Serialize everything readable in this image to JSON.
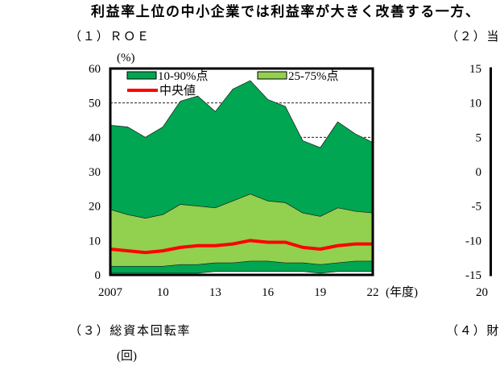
{
  "header": {
    "title": "利益率上位の中小企業では利益率が大きく改善する一方、"
  },
  "chart_data": [
    {
      "title": "（１）ＲＯＥ",
      "type": "area",
      "ylabel": "(%)",
      "xlabel": "(年度)",
      "x": [
        2007,
        2008,
        2009,
        2010,
        2011,
        2012,
        2013,
        2014,
        2015,
        2016,
        2017,
        2018,
        2019,
        2020,
        2021,
        2022
      ],
      "xticks": [
        2007,
        2010,
        2013,
        2016,
        2019,
        2022
      ],
      "xtick_labels": [
        "2007",
        "10",
        "13",
        "16",
        "19",
        "22"
      ],
      "ylim": [
        0,
        60
      ],
      "yticks": [
        0,
        10,
        20,
        30,
        40,
        50,
        60
      ],
      "grid": true,
      "legend": "top",
      "series": [
        {
          "name": "10-90%点",
          "color": "#00a651",
          "lower": [
            0.5,
            0.5,
            0.5,
            0.5,
            0.5,
            0.5,
            1,
            1,
            1,
            1,
            1,
            1,
            0.5,
            1,
            1,
            1
          ],
          "upper": [
            43.5,
            43,
            40,
            43,
            50.5,
            52,
            47.5,
            54,
            56.5,
            51,
            49,
            39,
            37,
            44.5,
            41,
            38.5
          ]
        },
        {
          "name": "25-75%点",
          "color": "#92d050",
          "lower": [
            2.5,
            2.5,
            2.5,
            2.5,
            3,
            3,
            3.5,
            3.5,
            4,
            4,
            3.5,
            3.5,
            3,
            3.5,
            4,
            4
          ],
          "upper": [
            19,
            17.5,
            16.5,
            17.5,
            20.5,
            20,
            19.5,
            21.5,
            23.5,
            21.5,
            21,
            18,
            17,
            19.5,
            18.5,
            18
          ]
        },
        {
          "name": "中央値",
          "color": "#ff0000",
          "values": [
            7.5,
            7,
            6.5,
            7,
            8,
            8.5,
            8.5,
            9,
            10,
            9.5,
            9.5,
            8,
            7.5,
            8.5,
            9,
            9
          ]
        }
      ]
    },
    {
      "title": "（２）当",
      "ylim": [
        -15,
        15
      ],
      "yticks": [
        15,
        10,
        5,
        0,
        -5,
        -10,
        -15
      ],
      "xtick_labels": [
        "20"
      ]
    },
    {
      "title": "（３）総資本回転率",
      "ylabel": "(回)"
    },
    {
      "title": "（４）財"
    }
  ]
}
